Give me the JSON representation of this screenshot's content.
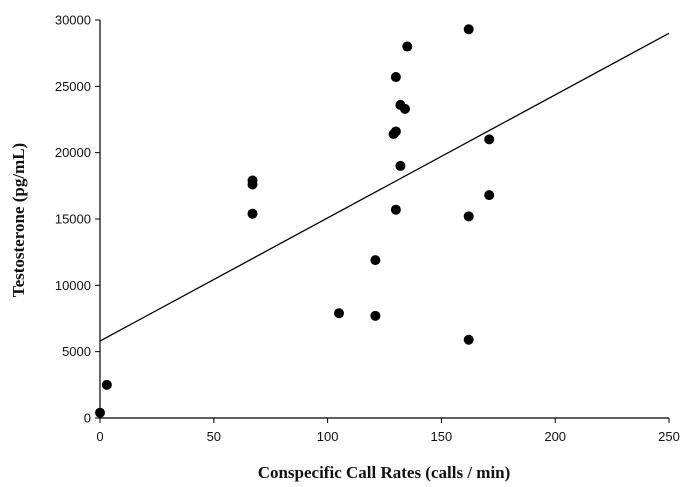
{
  "chart_data": {
    "type": "scatter",
    "xlabel": "Conspecific Call Rates (calls / min)",
    "ylabel": "Testosterone (pg/mL)",
    "xlim": [
      0,
      250
    ],
    "ylim": [
      0,
      30000
    ],
    "x_ticks": [
      0,
      50,
      100,
      150,
      200,
      250
    ],
    "y_ticks": [
      0,
      5000,
      10000,
      15000,
      20000,
      25000,
      30000
    ],
    "grid": false,
    "series": [
      {
        "points": [
          {
            "x": 0,
            "y": 400
          },
          {
            "x": 3,
            "y": 2500
          },
          {
            "x": 67,
            "y": 17900
          },
          {
            "x": 67,
            "y": 17600
          },
          {
            "x": 67,
            "y": 15400
          },
          {
            "x": 105,
            "y": 7900
          },
          {
            "x": 121,
            "y": 11900
          },
          {
            "x": 121,
            "y": 7700
          },
          {
            "x": 129,
            "y": 21400
          },
          {
            "x": 130,
            "y": 21600
          },
          {
            "x": 130,
            "y": 25700
          },
          {
            "x": 130,
            "y": 15700
          },
          {
            "x": 132,
            "y": 19000
          },
          {
            "x": 132,
            "y": 23600
          },
          {
            "x": 134,
            "y": 23300
          },
          {
            "x": 135,
            "y": 28000
          },
          {
            "x": 162,
            "y": 29300
          },
          {
            "x": 162,
            "y": 15200
          },
          {
            "x": 162,
            "y": 5900
          },
          {
            "x": 171,
            "y": 21000
          },
          {
            "x": 171,
            "y": 16800
          }
        ]
      }
    ],
    "regression_line": {
      "x": [
        0,
        250
      ],
      "y": [
        5800,
        29000
      ]
    }
  }
}
